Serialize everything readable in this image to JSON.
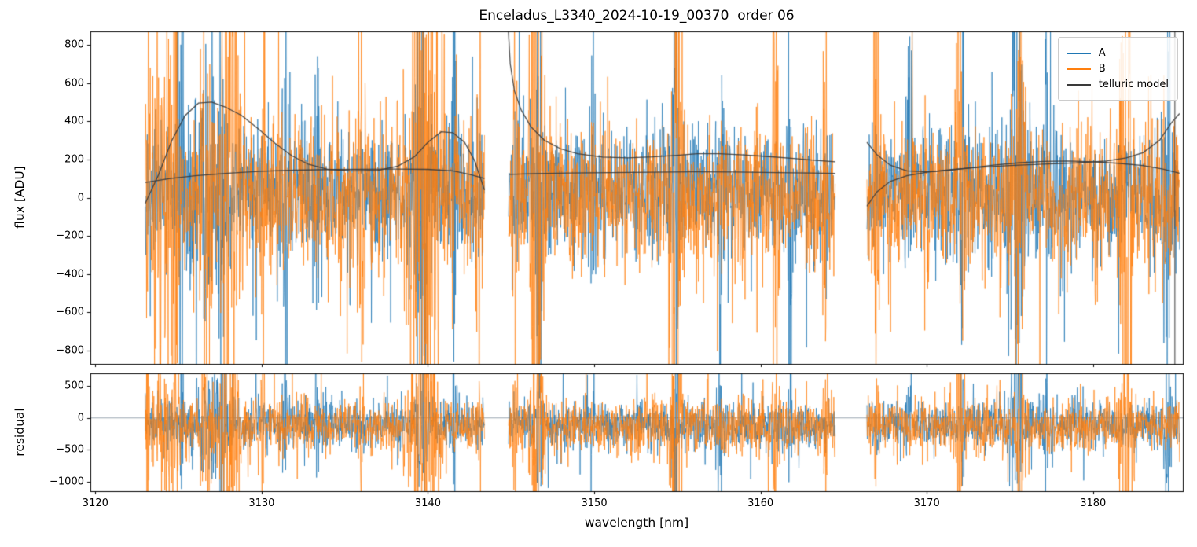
{
  "figure": {
    "background": "#ffffff"
  },
  "chart_data": [
    {
      "type": "line",
      "panel": "flux",
      "title": "Enceladus_L3340_2024-10-19_00370  order 06",
      "ylabel": "flux [ADU]",
      "xlim": [
        3119.7,
        3185.4
      ],
      "ylim": [
        -870,
        870
      ],
      "yticks": [
        800,
        600,
        400,
        200,
        0,
        -200,
        -400,
        -600,
        -800
      ],
      "grid": false,
      "legend_position": "upper right",
      "legend": [
        {
          "label": "A",
          "color": "#1f77b4"
        },
        {
          "label": "B",
          "color": "#ff7f0e"
        },
        {
          "label": "telluric model",
          "color": "#3a3a3a"
        }
      ],
      "segments": [
        {
          "x_start": 3123.0,
          "x_end": 3143.4
        },
        {
          "x_start": 3144.85,
          "x_end": 3164.5
        },
        {
          "x_start": 3166.4,
          "x_end": 3185.2
        }
      ],
      "series": [
        {
          "name": "A",
          "color": "#1f77b4",
          "mean": 30,
          "std": 165
        },
        {
          "name": "B",
          "color": "#ff7f0e",
          "mean": 10,
          "std": 185
        }
      ],
      "noise_tail": {
        "prob": 0.05,
        "factor": 2.5
      },
      "noise_bands": [
        {
          "x": 3123.15,
          "sigma": 0.05,
          "gain": 5.0,
          "series": "B"
        },
        {
          "x": 3124.0,
          "sigma": 0.5,
          "gain": 2.0,
          "series": "B"
        },
        {
          "x": 3124.8,
          "sigma": 0.12,
          "gain": 6.0,
          "series": "B"
        },
        {
          "x": 3125.15,
          "sigma": 0.08,
          "gain": 5.0,
          "series": "A"
        },
        {
          "x": 3126.6,
          "sigma": 0.25,
          "gain": 2.0,
          "series": "B"
        },
        {
          "x": 3126.8,
          "sigma": 0.8,
          "gain": 1.2,
          "series": "A"
        },
        {
          "x": 3127.6,
          "sigma": 0.12,
          "gain": 4.0,
          "series": "A"
        },
        {
          "x": 3128.1,
          "sigma": 0.3,
          "gain": 6.5,
          "series": "B"
        },
        {
          "x": 3130.1,
          "sigma": 0.08,
          "gain": 3.0,
          "series": "B"
        },
        {
          "x": 3131.4,
          "sigma": 0.15,
          "gain": 2.5,
          "series": "A"
        },
        {
          "x": 3133.3,
          "sigma": 0.1,
          "gain": 2.5,
          "series": "A"
        },
        {
          "x": 3136.0,
          "sigma": 0.1,
          "gain": 2.0,
          "series": "B"
        },
        {
          "x": 3139.7,
          "sigma": 0.55,
          "gain": 6.5,
          "series": "B"
        },
        {
          "x": 3139.6,
          "sigma": 0.25,
          "gain": 4.0,
          "series": "A"
        },
        {
          "x": 3141.6,
          "sigma": 0.1,
          "gain": 4.0,
          "series": "A"
        },
        {
          "x": 3143.1,
          "sigma": 0.08,
          "gain": 3.0,
          "series": "B"
        },
        {
          "x": 3145.2,
          "sigma": 0.1,
          "gain": 3.0,
          "series": "B"
        },
        {
          "x": 3146.5,
          "sigma": 0.25,
          "gain": 6.5,
          "series": "B"
        },
        {
          "x": 3146.7,
          "sigma": 0.12,
          "gain": 5.0,
          "series": "A"
        },
        {
          "x": 3149.9,
          "sigma": 0.08,
          "gain": 2.5,
          "series": "A"
        },
        {
          "x": 3154.95,
          "sigma": 0.2,
          "gain": 6.5,
          "series": "B"
        },
        {
          "x": 3154.9,
          "sigma": 0.1,
          "gain": 5.0,
          "series": "A"
        },
        {
          "x": 3157.6,
          "sigma": 0.1,
          "gain": 3.5,
          "series": "A"
        },
        {
          "x": 3160.9,
          "sigma": 0.12,
          "gain": 5.0,
          "series": "B"
        },
        {
          "x": 3161.8,
          "sigma": 0.08,
          "gain": 3.0,
          "series": "A"
        },
        {
          "x": 3163.9,
          "sigma": 0.08,
          "gain": 2.5,
          "series": "B"
        },
        {
          "x": 3167.0,
          "sigma": 0.12,
          "gain": 3.0,
          "series": "B"
        },
        {
          "x": 3168.9,
          "sigma": 0.1,
          "gain": 3.0,
          "series": "A"
        },
        {
          "x": 3171.95,
          "sigma": 0.15,
          "gain": 6.0,
          "series": "B"
        },
        {
          "x": 3172.15,
          "sigma": 0.08,
          "gain": 3.0,
          "series": "A"
        },
        {
          "x": 3175.35,
          "sigma": 0.25,
          "gain": 5.0,
          "series": "A"
        },
        {
          "x": 3175.6,
          "sigma": 0.15,
          "gain": 4.0,
          "series": "B"
        },
        {
          "x": 3177.2,
          "sigma": 0.08,
          "gain": 3.0,
          "series": "A"
        },
        {
          "x": 3182.0,
          "sigma": 0.2,
          "gain": 6.5,
          "series": "B"
        },
        {
          "x": 3184.5,
          "sigma": 0.12,
          "gain": 5.0,
          "series": "A"
        }
      ],
      "telluric_model": {
        "color": "#3a3a3a",
        "segments": [
          {
            "line1": [
              [
                3123.0,
                -30
              ],
              [
                3123.8,
                120
              ],
              [
                3124.6,
                300
              ],
              [
                3125.4,
                430
              ],
              [
                3126.2,
                495
              ],
              [
                3127.0,
                500
              ],
              [
                3127.8,
                475
              ],
              [
                3128.8,
                430
              ],
              [
                3129.8,
                360
              ],
              [
                3130.8,
                285
              ],
              [
                3131.8,
                220
              ],
              [
                3132.8,
                175
              ],
              [
                3134.0,
                148
              ],
              [
                3135.5,
                140
              ],
              [
                3137.0,
                143
              ],
              [
                3138.2,
                165
              ],
              [
                3139.2,
                215
              ],
              [
                3140.0,
                290
              ],
              [
                3140.8,
                345
              ],
              [
                3141.5,
                340
              ],
              [
                3142.2,
                290
              ],
              [
                3142.8,
                195
              ],
              [
                3143.4,
                40
              ]
            ],
            "line2": [
              [
                3123.0,
                80
              ],
              [
                3124.5,
                100
              ],
              [
                3126.0,
                115
              ],
              [
                3128.0,
                128
              ],
              [
                3130.0,
                138
              ],
              [
                3132.0,
                144
              ],
              [
                3134.0,
                147
              ],
              [
                3136.0,
                149
              ],
              [
                3138.0,
                150
              ],
              [
                3140.0,
                148
              ],
              [
                3141.5,
                140
              ],
              [
                3142.5,
                122
              ],
              [
                3143.4,
                100
              ]
            ]
          },
          {
            "line1": [
              [
                3144.82,
                900
              ],
              [
                3144.95,
                700
              ],
              [
                3145.2,
                560
              ],
              [
                3145.6,
                460
              ],
              [
                3146.2,
                370
              ],
              [
                3147.0,
                300
              ],
              [
                3148.0,
                255
              ],
              [
                3149.0,
                230
              ],
              [
                3150.5,
                212
              ],
              [
                3152.0,
                208
              ],
              [
                3153.5,
                213
              ],
              [
                3155.0,
                222
              ],
              [
                3156.2,
                230
              ],
              [
                3157.5,
                230
              ],
              [
                3159.0,
                224
              ],
              [
                3160.5,
                215
              ],
              [
                3162.0,
                205
              ],
              [
                3163.2,
                196
              ],
              [
                3164.5,
                188
              ]
            ],
            "line2": [
              [
                3144.9,
                122
              ],
              [
                3146.5,
                126
              ],
              [
                3148.5,
                129
              ],
              [
                3151.0,
                131
              ],
              [
                3153.5,
                133
              ],
              [
                3156.0,
                135
              ],
              [
                3158.5,
                134
              ],
              [
                3161.0,
                131
              ],
              [
                3163.0,
                129
              ],
              [
                3164.5,
                127
              ]
            ]
          },
          {
            "line1": [
              [
                3166.4,
                290
              ],
              [
                3167.0,
                225
              ],
              [
                3167.8,
                170
              ],
              [
                3168.8,
                140
              ],
              [
                3170.0,
                135
              ],
              [
                3171.2,
                142
              ],
              [
                3172.5,
                155
              ],
              [
                3174.0,
                170
              ],
              [
                3175.5,
                182
              ],
              [
                3177.0,
                190
              ],
              [
                3178.5,
                192
              ],
              [
                3180.0,
                188
              ],
              [
                3181.5,
                180
              ],
              [
                3183.0,
                168
              ],
              [
                3184.2,
                150
              ],
              [
                3185.2,
                128
              ]
            ],
            "line2": [
              [
                3166.4,
                -45
              ],
              [
                3167.0,
                30
              ],
              [
                3167.8,
                85
              ],
              [
                3168.8,
                115
              ],
              [
                3170.0,
                133
              ],
              [
                3171.5,
                147
              ],
              [
                3173.0,
                158
              ],
              [
                3175.0,
                168
              ],
              [
                3177.0,
                175
              ],
              [
                3179.0,
                182
              ],
              [
                3180.8,
                192
              ],
              [
                3182.0,
                208
              ],
              [
                3183.0,
                235
              ],
              [
                3184.0,
                300
              ],
              [
                3184.7,
                390
              ],
              [
                3185.2,
                440
              ]
            ]
          }
        ]
      },
      "vlines": [
        {
          "x": 3184.92,
          "color": "#4a4a4a"
        }
      ]
    },
    {
      "type": "line",
      "panel": "residual",
      "ylabel": "residual",
      "xlabel": "wavelength [nm]",
      "ylim": [
        -1150,
        700
      ],
      "yticks": [
        500,
        0,
        -500,
        -1000
      ],
      "xticks": [
        3120,
        3130,
        3140,
        3150,
        3160,
        3170,
        3180
      ],
      "series": [
        {
          "name": "A",
          "color": "#1f77b4",
          "mean": -110,
          "std": 185
        },
        {
          "name": "B",
          "color": "#ff7f0e",
          "mean": -135,
          "std": 205
        }
      ],
      "zero_line": {
        "y": 0,
        "color": "#708090"
      }
    }
  ]
}
